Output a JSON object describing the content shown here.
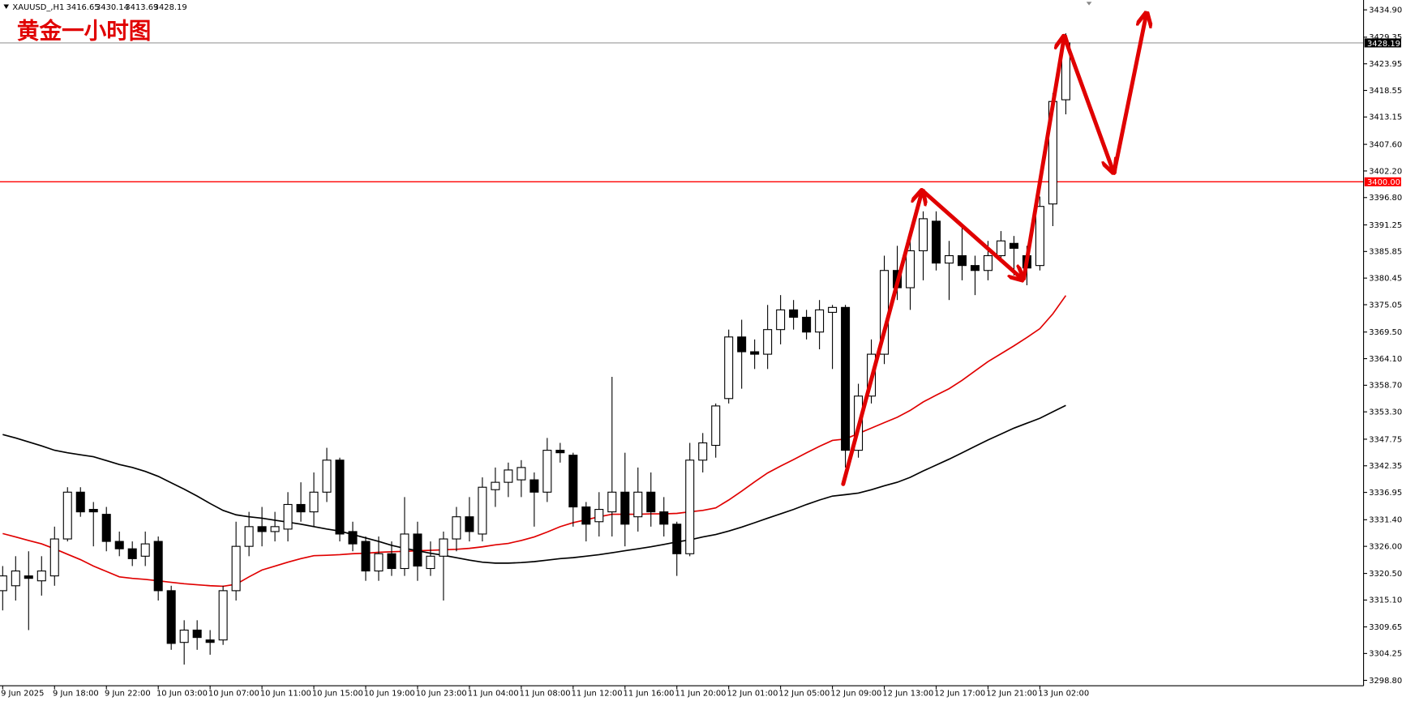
{
  "chart_data": {
    "type": "candlestick",
    "title": "黄金一小时图",
    "symbol": "XAUUSD_,H1",
    "categories": [
      "9 Jun 2025",
      null,
      null,
      null,
      "9 Jun 18:00",
      null,
      null,
      null,
      "9 Jun 22:00",
      null,
      null,
      null,
      "10 Jun 03:00",
      null,
      null,
      null,
      "10 Jun 07:00",
      null,
      null,
      null,
      "10 Jun 11:00",
      null,
      null,
      null,
      "10 Jun 15:00",
      null,
      null,
      null,
      "10 Jun 19:00",
      null,
      null,
      null,
      "10 Jun 23:00",
      null,
      null,
      null,
      "11 Jun 04:00",
      null,
      null,
      null,
      "11 Jun 08:00",
      null,
      null,
      null,
      "11 Jun 12:00",
      null,
      null,
      null,
      "11 Jun 16:00",
      null,
      null,
      null,
      "11 Jun 20:00",
      null,
      null,
      null,
      "12 Jun 01:00",
      null,
      null,
      null,
      "12 Jun 05:00",
      null,
      null,
      null,
      "12 Jun 09:00",
      null,
      null,
      null,
      "12 Jun 13:00",
      null,
      null,
      null,
      "12 Jun 17:00",
      null,
      null,
      null,
      "12 Jun 21:00",
      null,
      null,
      null,
      "13 Jun 02:00",
      null,
      null
    ],
    "open": [
      3317,
      3318,
      3320,
      3319,
      3320,
      3327.5,
      3337,
      3333.5,
      3332.5,
      3327,
      3325.5,
      3324,
      3327,
      3317,
      3306.5,
      3309,
      3307,
      3307,
      3317,
      3326,
      3330,
      3329,
      3329.5,
      3334.5,
      3333,
      3337,
      3343.5,
      3329,
      3327,
      3321,
      3324.5,
      3321.5,
      3328.5,
      3321.5,
      3324,
      3327.5,
      3332,
      3328.5,
      3337.5,
      3339,
      3339.5,
      3339.5,
      3337,
      3345.5,
      3344.5,
      3334,
      3331,
      3333,
      3337,
      3332,
      3337,
      3333,
      3330.5,
      3324.5,
      3343.5,
      3346.5,
      3356,
      3368.5,
      3365.5,
      3365,
      3370,
      3374,
      3372.5,
      3369.5,
      3373.5,
      3374.5,
      3345.5,
      3356.5,
      3365,
      3382,
      3378.5,
      3386,
      3392,
      3383.5,
      3385,
      3383,
      3382,
      3385,
      3387.5,
      3385,
      3383,
      3395.5,
      3416.65
    ],
    "high": [
      3322,
      3324,
      3325,
      3324,
      3330,
      3338,
      3338,
      3335,
      3334,
      3329,
      3327,
      3329,
      3328,
      3318,
      3311,
      3311,
      3309,
      3318,
      3331,
      3333,
      3334,
      3333,
      3337,
      3339,
      3341,
      3346,
      3344,
      3331,
      3328,
      3328,
      3327,
      3336,
      3331,
      3327,
      3329,
      3334,
      3336,
      3340,
      3342,
      3343,
      3343.5,
      3341,
      3348,
      3347,
      3345,
      3335,
      3337,
      3360.4,
      3345,
      3342,
      3341,
      3336,
      3331,
      3347,
      3349,
      3355,
      3370,
      3372,
      3368,
      3375,
      3377,
      3376,
      3374,
      3376,
      3375,
      3375,
      3359,
      3368,
      3385,
      3387,
      3388,
      3394,
      3394,
      3388,
      3391,
      3385,
      3388,
      3390,
      3389,
      3387,
      3397,
      3418,
      3430.14
    ],
    "low": [
      3313,
      3315,
      3309,
      3316,
      3318,
      3327,
      3332,
      3326,
      3325,
      3324,
      3322,
      3322,
      3315,
      3305,
      3302,
      3305,
      3304,
      3306,
      3315,
      3324,
      3326,
      3327,
      3327,
      3331,
      3330,
      3335,
      3327,
      3325,
      3319,
      3319,
      3320,
      3320,
      3319,
      3320,
      3315,
      3325,
      3327,
      3327,
      3334,
      3336,
      3336,
      3330,
      3335,
      3343,
      3330,
      3327,
      3328,
      3328,
      3326,
      3329,
      3330,
      3328,
      3320,
      3324,
      3341,
      3344,
      3355,
      3358,
      3362,
      3362,
      3367,
      3370,
      3368,
      3366,
      3362,
      3342,
      3344,
      3355,
      3363,
      3376,
      3374,
      3380,
      3382,
      3376,
      3380,
      3377,
      3380,
      3384,
      3381,
      3379,
      3382,
      3391,
      3413.69
    ],
    "close": [
      3320,
      3321,
      3319.5,
      3321,
      3327.5,
      3337,
      3333,
      3333,
      3327,
      3325.5,
      3323.5,
      3326.5,
      3317,
      3306.3,
      3309,
      3307.5,
      3306.5,
      3317,
      3326,
      3330,
      3329,
      3330,
      3334.5,
      3333,
      3337,
      3343.5,
      3328.5,
      3326.5,
      3321,
      3324.5,
      3321.5,
      3328.5,
      3322,
      3324,
      3327.5,
      3332,
      3329,
      3338,
      3339,
      3341.5,
      3342,
      3337,
      3345.5,
      3345,
      3334,
      3330.5,
      3333.5,
      3337,
      3330.5,
      3337,
      3333,
      3330.5,
      3324.5,
      3343.5,
      3347,
      3354.5,
      3368.5,
      3365.5,
      3365,
      3370,
      3374,
      3372.5,
      3369.5,
      3374,
      3374.5,
      3345.5,
      3356.5,
      3365,
      3382,
      3378.5,
      3386,
      3392.5,
      3383.5,
      3385,
      3383,
      3382,
      3385,
      3388,
      3386.5,
      3382.5,
      3395,
      3416.3,
      3428.19
    ],
    "lines": [
      {
        "color": "#e00000",
        "values": [
          3328.6,
          3327.9,
          3327.2,
          3326.5,
          3325.5,
          3324.4,
          3323.3,
          3322.0,
          3320.9,
          3319.8,
          3319.5,
          3319.3,
          3319.0,
          3318.7,
          3318.4,
          3318.2,
          3318.0,
          3317.9,
          3318.3,
          3319.8,
          3321.2,
          3322.0,
          3322.8,
          3323.5,
          3324.1,
          3324.2,
          3324.3,
          3324.5,
          3324.6,
          3324.8,
          3324.9,
          3325.0,
          3325.1,
          3325.2,
          3325.3,
          3325.4,
          3325.6,
          3325.9,
          3326.3,
          3326.6,
          3327.2,
          3327.9,
          3328.9,
          3330.0,
          3330.8,
          3331.4,
          3332.0,
          3332.5,
          3332.5,
          3332.5,
          3332.6,
          3332.6,
          3332.7,
          3333.0,
          3333.3,
          3333.8,
          3335.4,
          3337.2,
          3339.1,
          3340.9,
          3342.3,
          3343.6,
          3345.0,
          3346.3,
          3347.5,
          3347.8,
          3348.9,
          3350.0,
          3351.1,
          3352.2,
          3353.6,
          3355.3,
          3356.7,
          3358.0,
          3359.7,
          3361.6,
          3363.5,
          3365.1,
          3366.7,
          3368.4,
          3370.2,
          3373.2,
          3376.9
        ]
      },
      {
        "color": "#000000",
        "values": [
          3348.7,
          3348.0,
          3347.2,
          3346.4,
          3345.5,
          3345.0,
          3344.6,
          3344.2,
          3343.4,
          3342.6,
          3342.0,
          3341.2,
          3340.2,
          3338.9,
          3337.6,
          3336.2,
          3334.7,
          3333.3,
          3332.4,
          3332.0,
          3331.7,
          3331.3,
          3330.9,
          3330.5,
          3330.0,
          3329.5,
          3329.1,
          3328.4,
          3327.7,
          3327.0,
          3326.2,
          3325.6,
          3325.1,
          3324.6,
          3324.2,
          3323.7,
          3323.2,
          3322.8,
          3322.6,
          3322.6,
          3322.7,
          3322.9,
          3323.2,
          3323.5,
          3323.7,
          3324.0,
          3324.3,
          3324.7,
          3325.1,
          3325.5,
          3325.9,
          3326.4,
          3326.9,
          3327.3,
          3327.9,
          3328.4,
          3329.1,
          3329.9,
          3330.8,
          3331.7,
          3332.6,
          3333.5,
          3334.5,
          3335.4,
          3336.2,
          3336.5,
          3336.8,
          3337.5,
          3338.3,
          3339.0,
          3340.0,
          3341.3,
          3342.5,
          3343.7,
          3345.0,
          3346.3,
          3347.6,
          3348.8,
          3350.0,
          3351.0,
          3352.0,
          3353.3,
          3354.6
        ]
      }
    ],
    "level": {
      "value": 3400,
      "label": "3400.00",
      "color": "#ff0000"
    },
    "ylim": [
      3297.7,
      3436.9
    ],
    "yticks": [
      {
        "value": 3298.8,
        "label": "3298.80"
      },
      {
        "value": 3304.25,
        "label": "3304.25"
      },
      {
        "value": 3309.65,
        "label": "3309.65"
      },
      {
        "value": 3315.1,
        "label": "3315.10"
      },
      {
        "value": 3320.5,
        "label": "3320.50"
      },
      {
        "value": 3326,
        "label": "3326.00"
      },
      {
        "value": 3331.4,
        "label": "3331.40"
      },
      {
        "value": 3336.95,
        "label": "3336.95"
      },
      {
        "value": 3342.35,
        "label": "3342.35"
      },
      {
        "value": 3347.75,
        "label": "3347.75"
      },
      {
        "value": 3353.3,
        "label": "3353.30"
      },
      {
        "value": 3358.7,
        "label": "3358.70"
      },
      {
        "value": 3364.1,
        "label": "3364.10"
      },
      {
        "value": 3369.5,
        "label": "3369.50"
      },
      {
        "value": 3375.05,
        "label": "3375.05"
      },
      {
        "value": 3380.45,
        "label": "3380.45"
      },
      {
        "value": 3385.85,
        "label": "3385.85"
      },
      {
        "value": 3391.25,
        "label": "3391.25"
      },
      {
        "value": 3396.8,
        "label": "3396.80"
      },
      {
        "value": 3402.2,
        "label": "3402.20"
      },
      {
        "value": 3407.6,
        "label": "3407.60"
      },
      {
        "value": 3413.15,
        "label": "3413.15"
      },
      {
        "value": 3418.55,
        "label": "3418.55"
      },
      {
        "value": 3423.95,
        "label": "3423.95"
      },
      {
        "value": 3429.35,
        "label": "3429.35"
      },
      {
        "value": 3434.9,
        "label": "3434.90"
      }
    ]
  }
}
